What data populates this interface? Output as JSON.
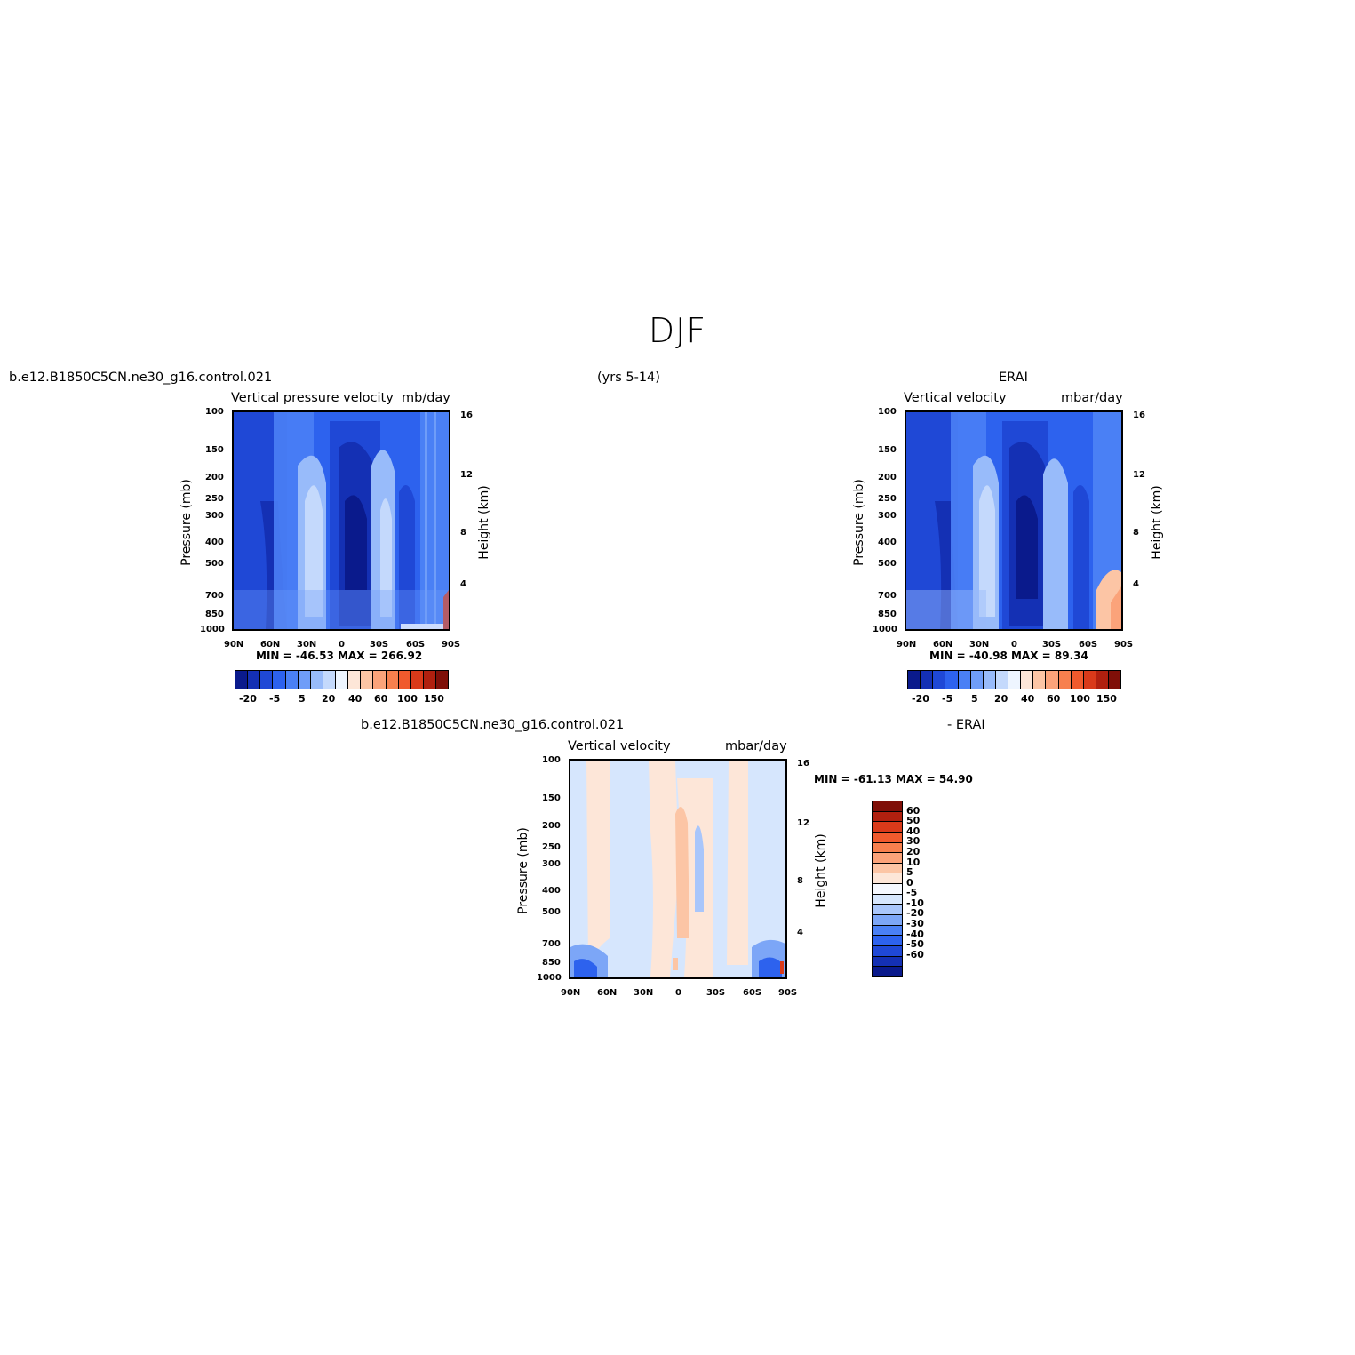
{
  "title": "DJF",
  "header": {
    "case": "b.e12.B1850C5CN.ne30_g16.control.021",
    "years": "(yrs 5-14)",
    "obs": "ERAI"
  },
  "panels": {
    "model": {
      "subtitle_left": "Vertical pressure velocity",
      "subtitle_right": "mb/day",
      "min_max": "MIN = -46.53   MAX = 266.92"
    },
    "obs": {
      "subtitle_left": "Vertical velocity",
      "subtitle_right": "mbar/day",
      "min_max": "MIN = -40.98   MAX =  89.34"
    },
    "diff": {
      "case": "b.e12.B1850C5CN.ne30_g16.control.021",
      "minus": "- ERAI",
      "subtitle_left": "Vertical velocity",
      "subtitle_right": "mbar/day",
      "min_max": "MIN = -61.13   MAX =  54.90"
    }
  },
  "axes": {
    "ylabel": "Pressure (mb)",
    "ylabel_right": "Height (km)",
    "pressure_ticks": [
      "100",
      "150",
      "200",
      "250",
      "300",
      "400",
      "500",
      "700",
      "850",
      "1000"
    ],
    "height_ticks": [
      "16",
      "12",
      "8",
      "4"
    ],
    "lat_ticks": [
      "90N",
      "60N",
      "30N",
      "0",
      "30S",
      "60S",
      "90S"
    ]
  },
  "colorbars": {
    "main_labels": [
      "-20",
      "-5",
      "5",
      "20",
      "40",
      "60",
      "100",
      "150"
    ],
    "main_colors": [
      "#0a1a8c",
      "#1430b4",
      "#1f48d6",
      "#2d62ee",
      "#4a80f5",
      "#6f9df8",
      "#98bbfa",
      "#c4d9fc",
      "#eef5ff",
      "#fde6d8",
      "#fcc5a5",
      "#fba37a",
      "#f7804e",
      "#f05a2d",
      "#d93a1a",
      "#b0200f",
      "#7f0f08"
    ],
    "diff_labels": [
      "60",
      "50",
      "40",
      "30",
      "20",
      "10",
      "5",
      "0",
      "-5",
      "-10",
      "-20",
      "-30",
      "-40",
      "-50",
      "-60"
    ],
    "diff_colors": [
      "#7f0f08",
      "#b0200f",
      "#d93a1a",
      "#f05a2d",
      "#f7804e",
      "#fba37a",
      "#fcc5a5",
      "#fde6d8",
      "#f5f8ff",
      "#d6e6fd",
      "#a9c6fb",
      "#7ca6f7",
      "#4a80f5",
      "#2d62ee",
      "#1f48d6",
      "#1430b4",
      "#0a1a8c"
    ]
  },
  "chart_data": [
    {
      "type": "heatmap",
      "title": "Vertical pressure velocity",
      "units": "mb/day",
      "xlabel": "",
      "ylabel": "Pressure (mb)",
      "x": [
        "90N",
        "60N",
        "30N",
        "0",
        "30S",
        "60S",
        "90S"
      ],
      "ylim": [
        1000,
        100
      ],
      "min": -46.53,
      "max": 266.92
    },
    {
      "type": "heatmap",
      "title": "Vertical velocity",
      "units": "mbar/day",
      "xlabel": "",
      "ylabel": "Pressure (mb)",
      "x": [
        "90N",
        "60N",
        "30N",
        "0",
        "30S",
        "60S",
        "90S"
      ],
      "ylim": [
        1000,
        100
      ],
      "min": -40.98,
      "max": 89.34
    },
    {
      "type": "heatmap",
      "title": "Vertical velocity",
      "units": "mbar/day",
      "xlabel": "",
      "ylabel": "Pressure (mb)",
      "x": [
        "90N",
        "60N",
        "30N",
        "0",
        "30S",
        "60S",
        "90S"
      ],
      "ylim": [
        1000,
        100
      ],
      "min": -61.13,
      "max": 54.9
    }
  ]
}
